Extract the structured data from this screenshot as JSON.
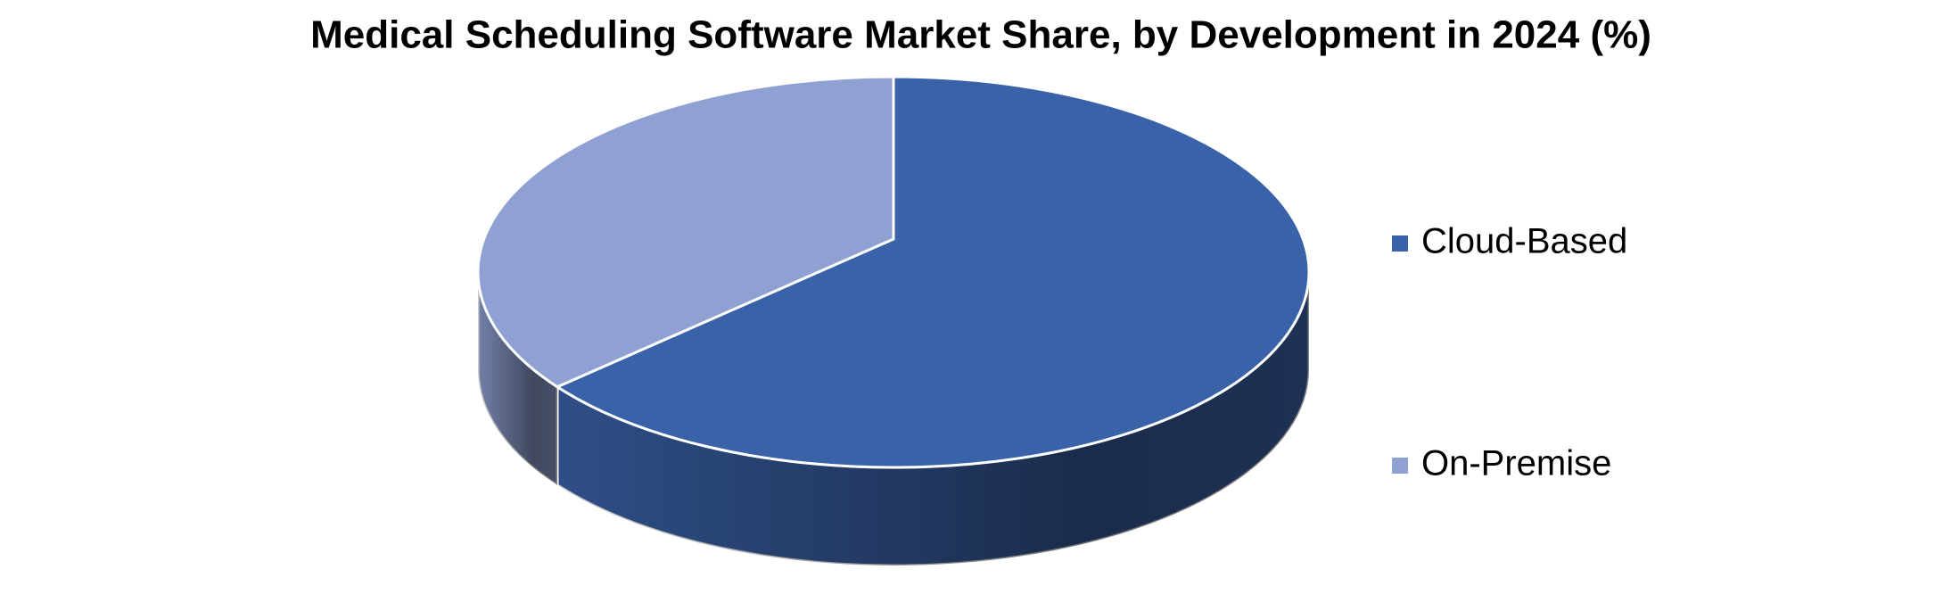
{
  "chart_data": {
    "type": "pie",
    "title": "Medical Scheduling Software Market Share, by Development in 2024 (%)",
    "categories": [
      "Cloud-Based",
      "On-Premise"
    ],
    "values": [
      65,
      35
    ],
    "colors": [
      "#3a62a8",
      "#8fa0d2"
    ]
  }
}
